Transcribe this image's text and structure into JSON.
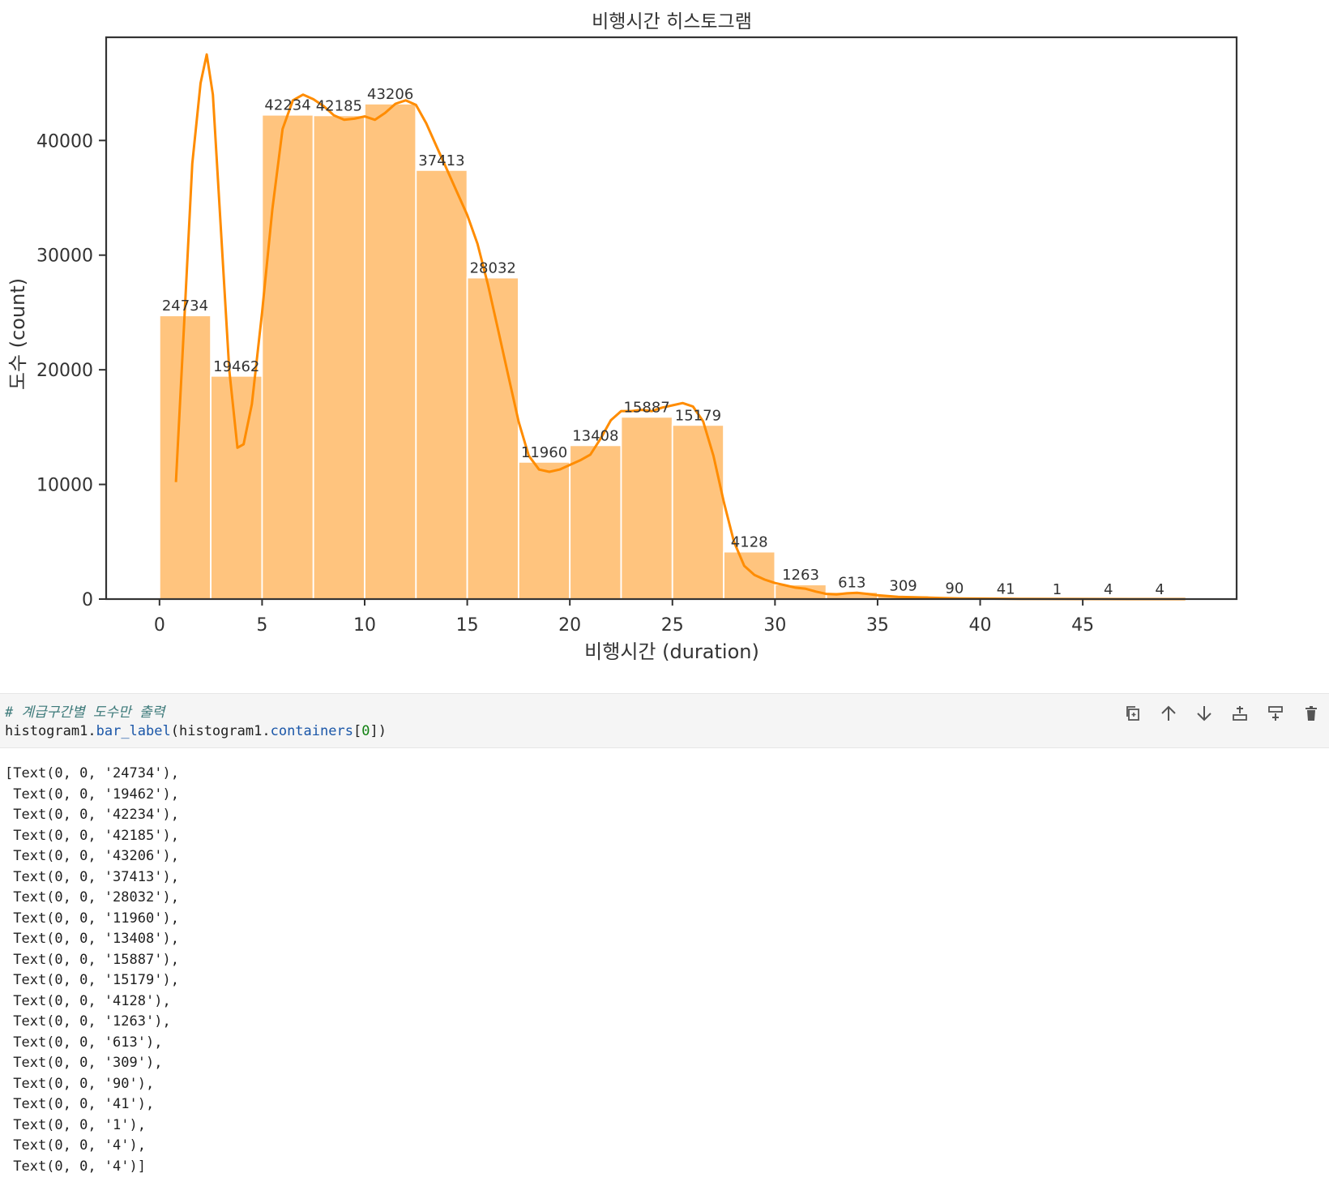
{
  "chart_data": {
    "type": "bar",
    "title": "비행시간 히스토그램",
    "xlabel": "비행시간 (duration)",
    "ylabel": "도수 (count)",
    "bin_edges": [
      0,
      2.5,
      5,
      7.5,
      10,
      12.5,
      15,
      17.5,
      20,
      22.5,
      25,
      27.5,
      30,
      32.5,
      35,
      37.5,
      40,
      42.5,
      45,
      47.5,
      50
    ],
    "values": [
      24734,
      19462,
      42234,
      42185,
      43206,
      37413,
      28032,
      11960,
      13408,
      15887,
      15179,
      4128,
      1263,
      613,
      309,
      90,
      41,
      1,
      4,
      4
    ],
    "data_labels": [
      "24734",
      "19462",
      "42234",
      "42185",
      "43206",
      "37413",
      "28032",
      "11960",
      "13408",
      "15887",
      "15179",
      "4128",
      "1263",
      "613",
      "309",
      "90",
      "41",
      "1",
      "4",
      "4"
    ],
    "xticks": [
      "0",
      "5",
      "10",
      "15",
      "20",
      "25",
      "30",
      "35",
      "40",
      "45"
    ],
    "yticks": [
      "0",
      "10000",
      "20000",
      "30000",
      "40000"
    ],
    "xlim": [
      -2.6,
      52.5
    ],
    "ylim": [
      0,
      49000
    ],
    "bar_color": "#ffc47e",
    "kde_color": "#ff8c00",
    "kde_curve": [
      [
        0.8,
        10200
      ],
      [
        1.2,
        24000
      ],
      [
        1.6,
        38000
      ],
      [
        2.0,
        45000
      ],
      [
        2.3,
        47500
      ],
      [
        2.6,
        44000
      ],
      [
        3.0,
        32000
      ],
      [
        3.4,
        20000
      ],
      [
        3.8,
        13200
      ],
      [
        4.1,
        13500
      ],
      [
        4.5,
        17000
      ],
      [
        5.0,
        25000
      ],
      [
        5.5,
        34000
      ],
      [
        6.0,
        41000
      ],
      [
        6.5,
        43500
      ],
      [
        7.0,
        44000
      ],
      [
        7.5,
        43600
      ],
      [
        8.0,
        43000
      ],
      [
        8.5,
        42200
      ],
      [
        9.0,
        41800
      ],
      [
        9.5,
        41900
      ],
      [
        10.0,
        42100
      ],
      [
        10.5,
        41800
      ],
      [
        11.0,
        42400
      ],
      [
        11.5,
        43200
      ],
      [
        12.0,
        43500
      ],
      [
        12.5,
        43100
      ],
      [
        13.0,
        41500
      ],
      [
        13.5,
        39500
      ],
      [
        14.0,
        37500
      ],
      [
        14.5,
        35500
      ],
      [
        15.0,
        33500
      ],
      [
        15.5,
        31000
      ],
      [
        16.0,
        27500
      ],
      [
        16.5,
        23500
      ],
      [
        17.0,
        19500
      ],
      [
        17.5,
        15500
      ],
      [
        18.0,
        12500
      ],
      [
        18.5,
        11300
      ],
      [
        19.0,
        11100
      ],
      [
        19.5,
        11300
      ],
      [
        20.0,
        11700
      ],
      [
        20.5,
        12100
      ],
      [
        21.0,
        12600
      ],
      [
        21.5,
        14000
      ],
      [
        22.0,
        15600
      ],
      [
        22.5,
        16400
      ],
      [
        23.0,
        16400
      ],
      [
        23.5,
        16500
      ],
      [
        24.0,
        16400
      ],
      [
        24.5,
        16700
      ],
      [
        25.0,
        16900
      ],
      [
        25.5,
        17100
      ],
      [
        26.0,
        16800
      ],
      [
        26.5,
        15500
      ],
      [
        27.0,
        12500
      ],
      [
        27.5,
        8500
      ],
      [
        28.0,
        5000
      ],
      [
        28.5,
        2900
      ],
      [
        29.0,
        2100
      ],
      [
        29.5,
        1700
      ],
      [
        30.0,
        1400
      ],
      [
        30.5,
        1200
      ],
      [
        31.0,
        1000
      ],
      [
        31.5,
        900
      ],
      [
        32.0,
        650
      ],
      [
        32.5,
        450
      ],
      [
        33.0,
        400
      ],
      [
        33.5,
        500
      ],
      [
        34.0,
        550
      ],
      [
        34.5,
        450
      ],
      [
        35.0,
        330
      ],
      [
        36.0,
        200
      ],
      [
        37.0,
        150
      ],
      [
        38.0,
        100
      ],
      [
        39.0,
        60
      ],
      [
        40.0,
        40
      ],
      [
        42.0,
        20
      ],
      [
        45.0,
        5
      ],
      [
        48.0,
        3
      ],
      [
        50.0,
        0
      ]
    ]
  },
  "code_cell": {
    "comment": "# 계급구간별 도수만 출력",
    "code_name": "histogram1",
    "code_dot1": ".",
    "code_method": "bar_label",
    "code_paren_open": "(",
    "code_arg_name": "histogram1",
    "code_dot2": ".",
    "code_attr": "containers",
    "code_bracket_open": "[",
    "code_index": "0",
    "code_bracket_close": "])",
    "toolbar": [
      "duplicate-icon",
      "move-up-icon",
      "move-down-icon",
      "insert-above-icon",
      "insert-below-icon",
      "delete-icon"
    ]
  },
  "output": {
    "lines": [
      "[Text(0, 0, '24734'),",
      " Text(0, 0, '19462'),",
      " Text(0, 0, '42234'),",
      " Text(0, 0, '42185'),",
      " Text(0, 0, '43206'),",
      " Text(0, 0, '37413'),",
      " Text(0, 0, '28032'),",
      " Text(0, 0, '11960'),",
      " Text(0, 0, '13408'),",
      " Text(0, 0, '15887'),",
      " Text(0, 0, '15179'),",
      " Text(0, 0, '4128'),",
      " Text(0, 0, '1263'),",
      " Text(0, 0, '613'),",
      " Text(0, 0, '309'),",
      " Text(0, 0, '90'),",
      " Text(0, 0, '41'),",
      " Text(0, 0, '1'),",
      " Text(0, 0, '4'),",
      " Text(0, 0, '4')]"
    ]
  }
}
